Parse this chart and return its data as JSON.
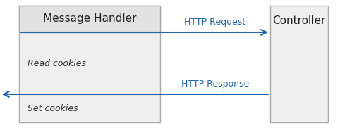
{
  "bg_color": "#ffffff",
  "box_fill": "#efefef",
  "box_header_fill": "#e2e2e2",
  "box_border": "#aaaaaa",
  "arrow_color": "#2266aa",
  "text_color_title": "#222222",
  "text_color_label": "#333333",
  "arrow_label_color": "#2266aa",
  "mh_title": "Message Handler",
  "ctrl_title": "Controller",
  "label1": "Read cookies",
  "label2": "Set cookies",
  "arrow1_label": "HTTP Request",
  "arrow2_label": "HTTP Response",
  "figsize": [
    4.82,
    1.82
  ],
  "dpi": 100
}
